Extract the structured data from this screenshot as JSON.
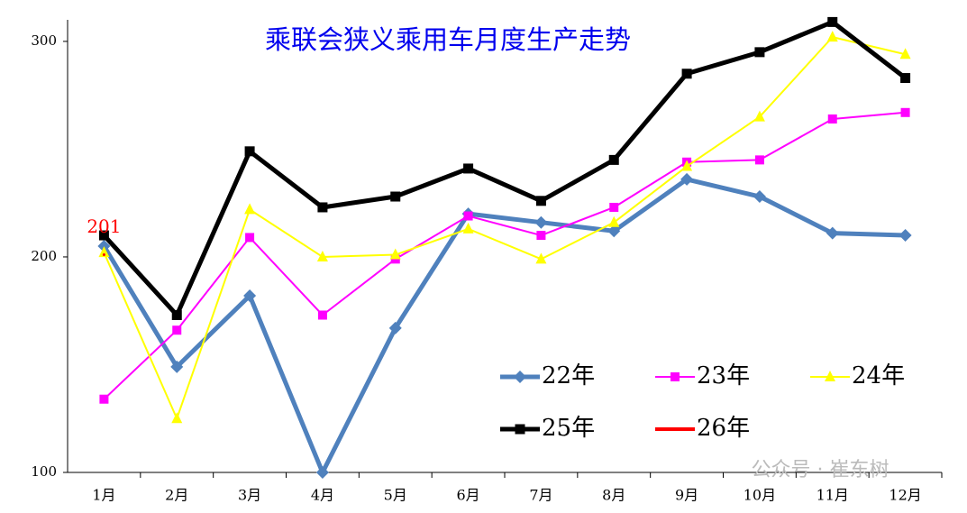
{
  "chart_data": {
    "type": "line",
    "title": "乘联会狭义乘用车月度生产走势",
    "categories": [
      "1月",
      "2月",
      "3月",
      "4月",
      "5月",
      "6月",
      "7月",
      "8月",
      "9月",
      "10月",
      "11月",
      "12月"
    ],
    "ylim": [
      100,
      310
    ],
    "yticks": [
      100,
      200,
      300
    ],
    "grid": false,
    "series": [
      {
        "name": "22年",
        "color": "#4f81bd",
        "marker": "diamond",
        "width": 5,
        "values": [
          205,
          149,
          182,
          100,
          167,
          220,
          216,
          212,
          236,
          228,
          211,
          210
        ]
      },
      {
        "name": "23年",
        "color": "#ff00ff",
        "marker": "square",
        "width": 2,
        "values": [
          134,
          166,
          209,
          173,
          199,
          219,
          210,
          223,
          244,
          245,
          264,
          267
        ]
      },
      {
        "name": "24年",
        "color": "#ffff00",
        "marker": "triangle",
        "width": 2,
        "values": [
          202,
          125,
          222,
          200,
          201,
          213,
          199,
          216,
          242,
          265,
          302,
          294
        ]
      },
      {
        "name": "25年",
        "color": "#000000",
        "marker": "square",
        "width": 5,
        "values": [
          210,
          173,
          249,
          223,
          228,
          241,
          226,
          245,
          285,
          295,
          309,
          283
        ]
      },
      {
        "name": "26年",
        "color": "#ff0000",
        "marker": "none",
        "width": 4,
        "values": [
          201,
          null,
          null,
          null,
          null,
          null,
          null,
          null,
          null,
          null,
          null,
          null
        ],
        "show_value_labels": true
      }
    ],
    "watermark": "公众号 · 崔东树"
  }
}
